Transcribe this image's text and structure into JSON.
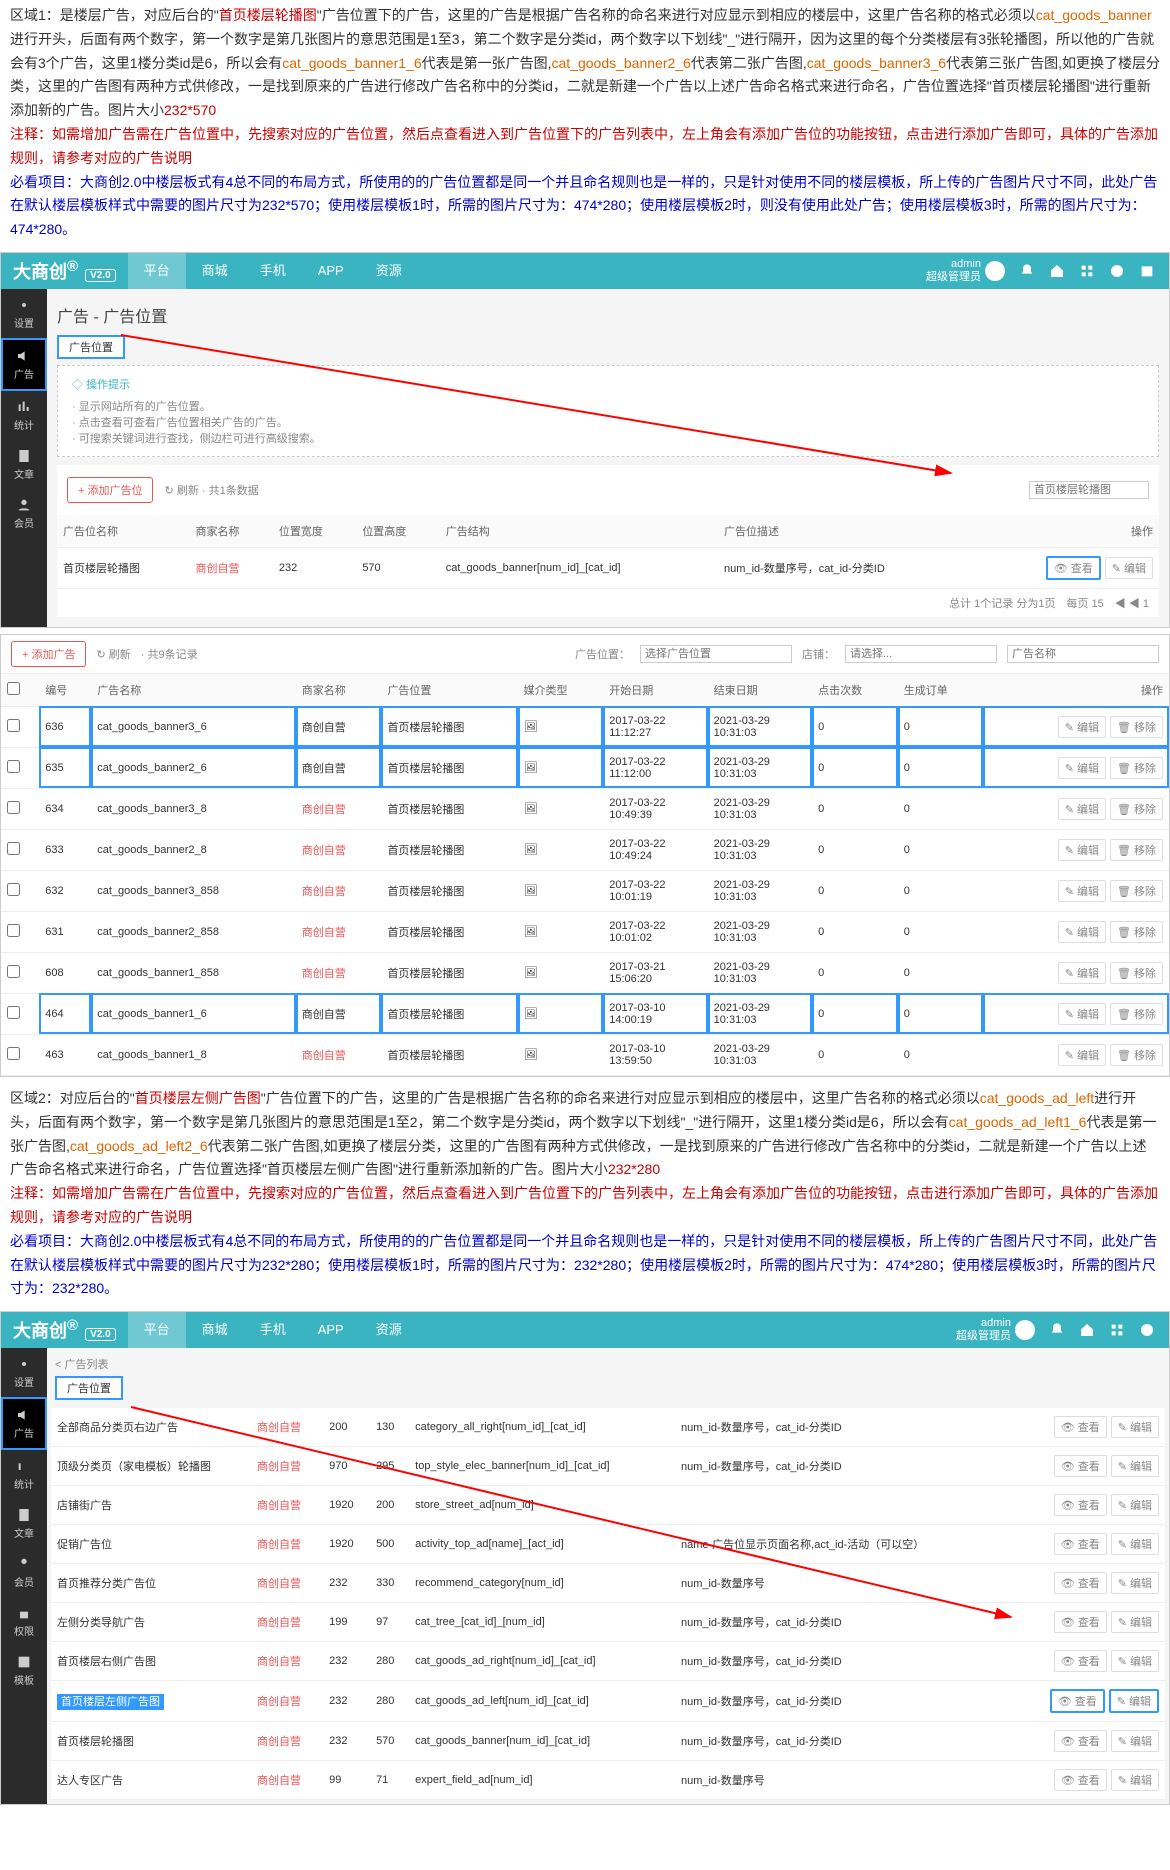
{
  "section1": {
    "prefix": "区域1：是楼层广告，对应后台的\"",
    "keyword": "首页楼层轮播图",
    "mid1": "\"广告位置下的广告，这里的广告是根据广告名称的命名来进行对应显示到相应的楼层中，这里广告名称的格式必须以",
    "code1": "cat_goods_banner",
    "mid2": "进行开头，后面有两个数字，第一个数字是第几张图片的意思范围是1至3，第二个数字是分类id，两个数字以下划线\"_\"进行隔开，因为这里的每个分类楼层有3张轮播图，所以他的广告就会有3个广告，这里1楼分类id是6，所以会有",
    "code2": "cat_goods_banner1_6",
    "mid3": "代表是第一张广告图,",
    "code3": "cat_goods_banner2_6",
    "mid4": "代表第二张广告图,",
    "code4": "cat_goods_banner3_6",
    "mid5": "代表第三张广告图,如更换了楼层分类，这里的广告图有两种方式供修改，一是找到原来的广告进行修改广告名称中的分类id，二就是新建一个广告以上述广告命名格式来进行命名，广告位置选择\"首页楼层轮播图\"进行重新添加新的广告。图片大小",
    "size": "232*570",
    "note_label": "注释：",
    "note": "如需增加广告需在广告位置中，先搜索对应的广告位置，然后点查看进入到广告位置下的广告列表中，左上角会有添加广告位的功能按钮，点击进行添加广告即可，具体的广告添加规则，请参考对应的广告说明",
    "must_label": "必看项目：",
    "must": "大商创2.0中楼层板式有4总不同的布局方式，所使用的的广告位置都是同一个并且命名规则也是一样的，只是针对使用不同的楼层模板，所上传的广告图片尺寸不同，此处广告在默认楼层模板样式中需要的图片尺寸为232*570；使用楼层模板1时，所需的图片尺寸为：474*280；使用楼层模板2时，则没有使用此处广告；使用楼层模板3时，所需的图片尺寸为：474*280。"
  },
  "admin": {
    "logo": "大商创",
    "logo_sup": "®",
    "ver": "V2.0",
    "nav": [
      "平台",
      "商城",
      "手机",
      "APP",
      "资源"
    ],
    "user": "admin",
    "role": "超级管理员",
    "side": [
      {
        "label": "设置",
        "icon": "gear"
      },
      {
        "label": "广告",
        "icon": "speaker"
      },
      {
        "label": "统计",
        "icon": "chart"
      },
      {
        "label": "文章",
        "icon": "doc"
      },
      {
        "label": "会员",
        "icon": "user"
      },
      {
        "label": "权限",
        "icon": "lock"
      },
      {
        "label": "模板",
        "icon": "tpl"
      }
    ],
    "crumb_tab": "广告位置",
    "crumb_list": "广告列表",
    "page_title": "广告 - 广告位置",
    "hint_title": "操作提示",
    "hints": [
      "显示网站所有的广告位置。",
      "点击查看可查看广告位置相关广告的广告。",
      "可搜索关键词进行查找，侧边栏可进行高级搜索。"
    ],
    "btn_add_pos": "+ 添加广告位",
    "btn_refresh": "↻ 刷新",
    "meta1": "· 共1条数据",
    "meta2": "· 共9条记录",
    "pos_cols": [
      "广告位名称",
      "商家名称",
      "位置宽度",
      "位置高度",
      "广告结构",
      "广告位描述",
      "操作"
    ],
    "pos_row": {
      "name": "首页楼层轮播图",
      "merchant": "商创自营",
      "w": "232",
      "h": "570",
      "struct": "cat_goods_banner[num_id]_[cat_id]",
      "desc": "num_id-数量序号，cat_id-分类ID"
    },
    "act_view": "查看",
    "act_edit": "编辑",
    "act_del": "移除",
    "pager": "总计 1个记录 分为1页　每页 15　◀ ◀ 1",
    "btn_add_ad": "+ 添加广告",
    "filter_pos_label": "广告位置：",
    "filter_pos_ph": "选择广告位置",
    "filter_shop_label": "店铺：",
    "filter_shop_ph": "请选择...",
    "filter_name_ph": "广告名称",
    "ad_cols": [
      "",
      "编号",
      "广告名称",
      "商家名称",
      "广告位置",
      "媒介类型",
      "开始日期",
      "结束日期",
      "点击次数",
      "生成订单",
      "操作"
    ],
    "rows": [
      {
        "id": "636",
        "name": "cat_goods_banner3_6",
        "m": "商创自营",
        "pos": "首页楼层轮播图",
        "start": "2017-03-22 11:12:27",
        "end": "2021-03-29 10:31:03",
        "click": "0",
        "order": "0",
        "hl": true
      },
      {
        "id": "635",
        "name": "cat_goods_banner2_6",
        "m": "商创自营",
        "pos": "首页楼层轮播图",
        "start": "2017-03-22 11:12:00",
        "end": "2021-03-29 10:31:03",
        "click": "0",
        "order": "0",
        "hl": true
      },
      {
        "id": "634",
        "name": "cat_goods_banner3_8",
        "m": "商创自营",
        "pos": "首页楼层轮播图",
        "start": "2017-03-22 10:49:39",
        "end": "2021-03-29 10:31:03",
        "click": "0",
        "order": "0"
      },
      {
        "id": "633",
        "name": "cat_goods_banner2_8",
        "m": "商创自营",
        "pos": "首页楼层轮播图",
        "start": "2017-03-22 10:49:24",
        "end": "2021-03-29 10:31:03",
        "click": "0",
        "order": "0"
      },
      {
        "id": "632",
        "name": "cat_goods_banner3_858",
        "m": "商创自营",
        "pos": "首页楼层轮播图",
        "start": "2017-03-22 10:01:19",
        "end": "2021-03-29 10:31:03",
        "click": "0",
        "order": "0"
      },
      {
        "id": "631",
        "name": "cat_goods_banner2_858",
        "m": "商创自营",
        "pos": "首页楼层轮播图",
        "start": "2017-03-22 10:01:02",
        "end": "2021-03-29 10:31:03",
        "click": "0",
        "order": "0"
      },
      {
        "id": "608",
        "name": "cat_goods_banner1_858",
        "m": "商创自营",
        "pos": "首页楼层轮播图",
        "start": "2017-03-21 15:06:20",
        "end": "2021-03-29 10:31:03",
        "click": "0",
        "order": "0"
      },
      {
        "id": "464",
        "name": "cat_goods_banner1_6",
        "m": "商创自营",
        "pos": "首页楼层轮播图",
        "start": "2017-03-10 14:00:19",
        "end": "2021-03-29 10:31:03",
        "click": "0",
        "order": "0",
        "hl": true
      },
      {
        "id": "463",
        "name": "cat_goods_banner1_8",
        "m": "商创自营",
        "pos": "首页楼层轮播图",
        "start": "2017-03-10 13:59:50",
        "end": "2021-03-29 10:31:03",
        "click": "0",
        "order": "0"
      }
    ]
  },
  "section2": {
    "prefix": "区域2：对应后台的\"",
    "keyword": "首页楼层左侧广告图",
    "mid1": "\"广告位置下的广告，这里的广告是根据广告名称的命名来进行对应显示到相应的楼层中，这里广告名称的格式必须以",
    "code1": "cat_goods_ad_left",
    "mid2": "进行开头，后面有两个数字，第一个数字是第几张图片的意思范围是1至2，第二个数字是分类id，两个数字以下划线\"_\"进行隔开，这里1楼分类id是6，所以会有",
    "code2": "cat_goods_ad_left1_6",
    "mid3": "代表是第一张广告图,",
    "code3": "cat_goods_ad_left2_6",
    "mid4": "代表第二张广告图,如更换了楼层分类，这里的广告图有两种方式供修改，一是找到原来的广告进行修改广告名称中的分类id，二就是新建一个广告以上述广告命名格式来进行命名，广告位置选择\"首页楼层左侧广告图\"进行重新添加新的广告。图片大小",
    "size": "232*280",
    "note_label": "注释：",
    "note": "如需增加广告需在广告位置中，先搜索对应的广告位置，然后点查看进入到广告位置下的广告列表中，左上角会有添加广告位的功能按钮，点击进行添加广告即可，具体的广告添加规则，请参考对应的广告说明",
    "must_label": "必看项目：",
    "must": "大商创2.0中楼层板式有4总不同的布局方式，所使用的的广告位置都是同一个并且命名规则也是一样的，只是针对使用不同的楼层模板，所上传的广告图片尺寸不同，此处广告在默认楼层模板样式中需要的图片尺寸为232*280；使用楼层模板1时，所需的图片尺寸为：232*280；使用楼层模板2时，所需的图片尺寸为：474*280；使用楼层模板3时，所需的图片尺寸为：232*280。"
  },
  "admin2_rows": [
    {
      "name": "全部商品分类页右边广告",
      "m": "商创自营",
      "w": "200",
      "h": "130",
      "struct": "category_all_right[num_id]_[cat_id]",
      "desc": "num_id-数量序号，cat_id-分类ID"
    },
    {
      "name": "顶级分类页（家电模板）轮播图",
      "m": "商创自营",
      "w": "970",
      "h": "295",
      "struct": "top_style_elec_banner[num_id]_[cat_id]",
      "desc": "num_id-数量序号，cat_id-分类ID"
    },
    {
      "name": "店铺街广告",
      "m": "商创自营",
      "w": "1920",
      "h": "200",
      "struct": "store_street_ad[num_id]",
      "desc": ""
    },
    {
      "name": "促销广告位",
      "m": "商创自营",
      "w": "1920",
      "h": "500",
      "struct": "activity_top_ad[name]_[act_id]",
      "desc": "name-广告位显示页面名称,act_id-活动（可以空）"
    },
    {
      "name": "首页推荐分类广告位",
      "m": "商创自营",
      "w": "232",
      "h": "330",
      "struct": "recommend_category[num_id]",
      "desc": "num_id-数量序号"
    },
    {
      "name": "左侧分类导航广告",
      "m": "商创自营",
      "w": "199",
      "h": "97",
      "struct": "cat_tree_[cat_id]_[num_id]",
      "desc": "num_id-数量序号，cat_id-分类ID"
    },
    {
      "name": "首页楼层右侧广告图",
      "m": "商创自营",
      "w": "232",
      "h": "280",
      "struct": "cat_goods_ad_right[num_id]_[cat_id]",
      "desc": "num_id-数量序号，cat_id-分类ID"
    },
    {
      "name": "首页楼层左侧广告图",
      "m": "商创自营",
      "w": "232",
      "h": "280",
      "struct": "cat_goods_ad_left[num_id]_[cat_id]",
      "desc": "num_id-数量序号，cat_id-分类ID",
      "hl": true
    },
    {
      "name": "首页楼层轮播图",
      "m": "商创自营",
      "w": "232",
      "h": "570",
      "struct": "cat_goods_banner[num_id]_[cat_id]",
      "desc": "num_id-数量序号，cat_id-分类ID"
    },
    {
      "name": "达人专区广告",
      "m": "商创自营",
      "w": "99",
      "h": "71",
      "struct": "expert_field_ad[num_id]",
      "desc": "num_id-数量序号"
    }
  ],
  "icon_media": "🖼"
}
